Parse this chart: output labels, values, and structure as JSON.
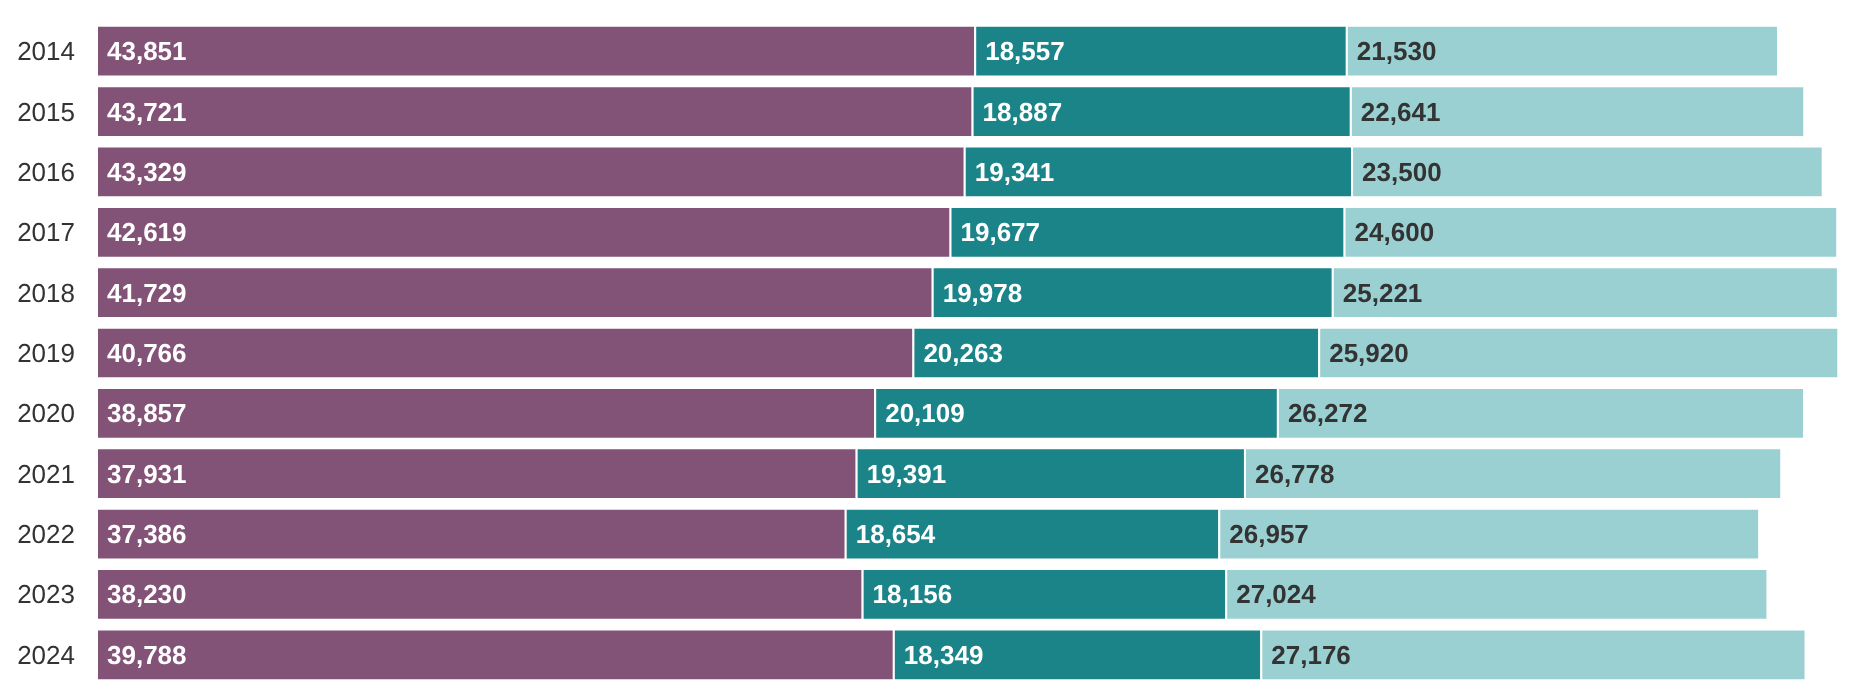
{
  "chart_data": {
    "type": "bar",
    "orientation": "horizontal",
    "stacked": true,
    "grid": false,
    "tick_labels": "y",
    "categories": [
      "2014",
      "2015",
      "2016",
      "2017",
      "2018",
      "2019",
      "2020",
      "2021",
      "2022",
      "2023",
      "2024"
    ],
    "series": [
      {
        "color": "#835277",
        "values": [
          43851,
          43721,
          43329,
          42619,
          41729,
          40766,
          38857,
          37931,
          37386,
          38230,
          39788
        ],
        "value_labels": [
          "43,851",
          "43,721",
          "43,329",
          "42,619",
          "41,729",
          "40,766",
          "38,857",
          "37,931",
          "37,386",
          "38,230",
          "39,788"
        ]
      },
      {
        "color": "#1a8489",
        "values": [
          18557,
          18887,
          19341,
          19677,
          19978,
          20263,
          20109,
          19391,
          18654,
          18156,
          18349
        ],
        "value_labels": [
          "18,557",
          "18,887",
          "19,341",
          "19,677",
          "19,978",
          "20,263",
          "20,109",
          "19,391",
          "18,654",
          "18,156",
          "18,349"
        ]
      },
      {
        "color": "#9ad0d2",
        "values": [
          21530,
          22641,
          23500,
          24600,
          25221,
          25920,
          26272,
          26778,
          26957,
          27024,
          27176
        ],
        "value_labels": [
          "21,530",
          "22,641",
          "23,500",
          "24,600",
          "25,221",
          "25,920",
          "26,272",
          "26,778",
          "26,957",
          "27,024",
          "27,176"
        ]
      }
    ]
  }
}
